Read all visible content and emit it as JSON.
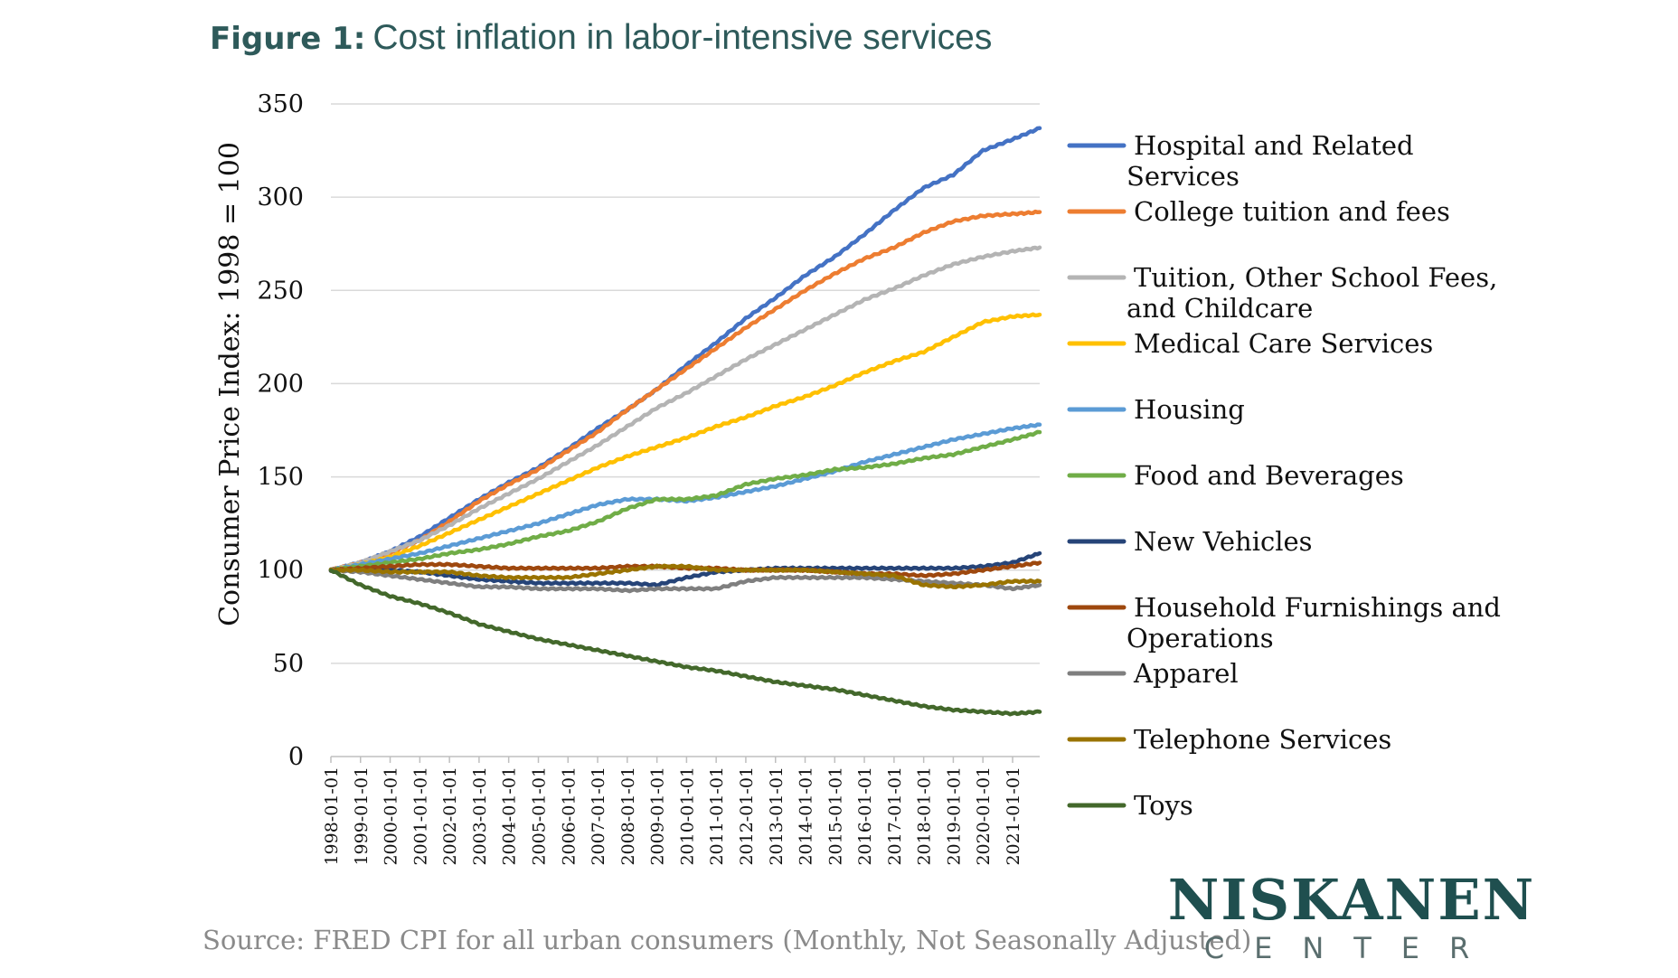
{
  "figure": {
    "label": "Figure 1:",
    "title": "Cost inflation in labor-intensive services",
    "title_color": "#2e5a5a"
  },
  "source": "Source: FRED CPI for all urban consumers (Monthly, Not Seasonally Adjusted)",
  "logo": {
    "line1": "NISKANEN",
    "line2": "CENTER",
    "color": "#1f4f4f"
  },
  "chart_data": {
    "type": "line",
    "ylabel": "Consumer Price Index: 1998 = 100",
    "xlabel": "",
    "ylim": [
      0,
      350
    ],
    "yticks": [
      0,
      50,
      100,
      150,
      200,
      250,
      300,
      350
    ],
    "grid": "horizontal",
    "legend_position": "right",
    "x_start": "1998-01-01",
    "x_end": "2021-12-01",
    "xticks": [
      "1998-01-01",
      "1999-01-01",
      "2000-01-01",
      "2001-01-01",
      "2002-01-01",
      "2003-01-01",
      "2004-01-01",
      "2005-01-01",
      "2006-01-01",
      "2007-01-01",
      "2008-01-01",
      "2009-01-01",
      "2010-01-01",
      "2011-01-01",
      "2012-01-01",
      "2013-01-01",
      "2014-01-01",
      "2015-01-01",
      "2016-01-01",
      "2017-01-01",
      "2018-01-01",
      "2019-01-01",
      "2020-01-01",
      "2021-01-01"
    ],
    "x": [
      "1998-01-01",
      "1999-01-01",
      "2000-01-01",
      "2001-01-01",
      "2002-01-01",
      "2003-01-01",
      "2004-01-01",
      "2005-01-01",
      "2006-01-01",
      "2007-01-01",
      "2008-01-01",
      "2009-01-01",
      "2010-01-01",
      "2011-01-01",
      "2012-01-01",
      "2013-01-01",
      "2014-01-01",
      "2015-01-01",
      "2016-01-01",
      "2017-01-01",
      "2018-01-01",
      "2019-01-01",
      "2020-01-01",
      "2021-01-01",
      "2021-12-01"
    ],
    "series": [
      {
        "name": "Hospital and Related\nServices",
        "color": "#4472c4",
        "values": [
          100,
          104,
          110,
          118,
          128,
          138,
          147,
          155,
          165,
          176,
          186,
          197,
          210,
          222,
          235,
          246,
          258,
          268,
          280,
          293,
          305,
          312,
          325,
          331,
          337
        ]
      },
      {
        "name": "College tuition and fees",
        "color": "#ed7d31",
        "values": [
          100,
          104,
          109,
          116,
          126,
          137,
          146,
          154,
          164,
          174,
          186,
          197,
          208,
          219,
          230,
          240,
          250,
          259,
          267,
          273,
          281,
          287,
          290,
          291,
          292
        ]
      },
      {
        "name": "Tuition, Other School Fees,\nand Childcare",
        "color": "#b4b4b4",
        "values": [
          100,
          104,
          110,
          116,
          124,
          133,
          141,
          149,
          158,
          167,
          177,
          187,
          195,
          204,
          213,
          221,
          229,
          237,
          245,
          251,
          258,
          264,
          268,
          271,
          273
        ]
      },
      {
        "name": "Medical Care Services",
        "color": "#ffc000",
        "values": [
          100,
          103,
          107,
          113,
          120,
          127,
          134,
          141,
          148,
          155,
          161,
          166,
          171,
          177,
          182,
          188,
          193,
          199,
          206,
          212,
          217,
          225,
          233,
          236,
          237
        ]
      },
      {
        "name": "Housing",
        "color": "#5b9bd5",
        "values": [
          100,
          103,
          106,
          109,
          113,
          117,
          121,
          125,
          130,
          135,
          138,
          138,
          137,
          139,
          142,
          145,
          149,
          153,
          158,
          162,
          166,
          170,
          173,
          176,
          178
        ]
      },
      {
        "name": "Food and Beverages",
        "color": "#70ad47",
        "values": [
          100,
          102,
          104,
          106,
          109,
          111,
          114,
          118,
          121,
          126,
          133,
          138,
          138,
          140,
          146,
          149,
          151,
          154,
          155,
          157,
          160,
          162,
          166,
          170,
          174
        ]
      },
      {
        "name": "New Vehicles",
        "color": "#264478",
        "values": [
          100,
          100,
          100,
          99,
          97,
          95,
          94,
          93,
          93,
          93,
          93,
          92,
          96,
          99,
          100,
          101,
          101,
          101,
          101,
          101,
          101,
          101,
          102,
          104,
          109
        ]
      },
      {
        "name": "Household Furnishings and\nOperations",
        "color": "#9e480e",
        "values": [
          100,
          101,
          102,
          103,
          103,
          102,
          101,
          101,
          101,
          101,
          102,
          102,
          101,
          101,
          100,
          100,
          100,
          99,
          98,
          98,
          97,
          98,
          100,
          102,
          104
        ]
      },
      {
        "name": "Apparel",
        "color": "#7f7f7f",
        "values": [
          100,
          99,
          97,
          95,
          93,
          91,
          91,
          90,
          90,
          90,
          89,
          90,
          90,
          90,
          94,
          96,
          96,
          96,
          96,
          95,
          94,
          93,
          92,
          90,
          92
        ]
      },
      {
        "name": "Telephone Services",
        "color": "#997300",
        "values": [
          100,
          100,
          99,
          99,
          99,
          97,
          96,
          96,
          96,
          98,
          100,
          102,
          102,
          100,
          100,
          100,
          100,
          99,
          98,
          97,
          92,
          91,
          92,
          94,
          94
        ]
      },
      {
        "name": "Toys",
        "color": "#43682b",
        "values": [
          100,
          92,
          86,
          82,
          77,
          71,
          67,
          63,
          60,
          57,
          54,
          51,
          48,
          46,
          43,
          40,
          38,
          36,
          33,
          30,
          27,
          25,
          24,
          23,
          24
        ]
      }
    ]
  }
}
